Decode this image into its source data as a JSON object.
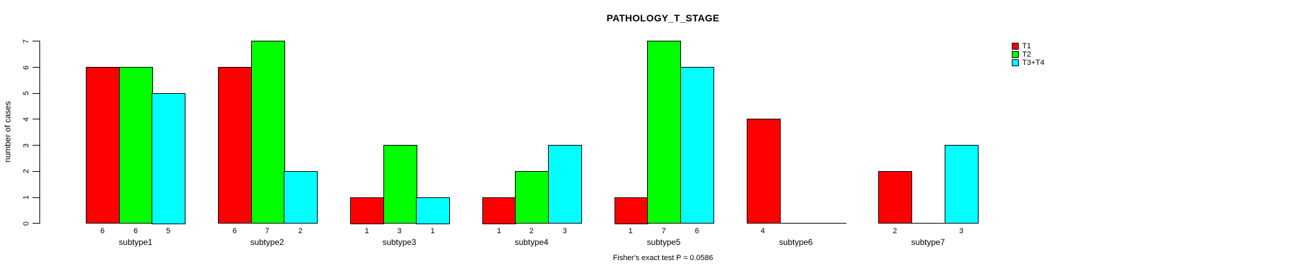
{
  "chart_data": {
    "type": "bar",
    "title": "PATHOLOGY_T_STAGE",
    "ylabel": "number of cases",
    "xlabel": "",
    "footnote": "Fisher's exact test P = 0.0586",
    "categories": [
      "subtype1",
      "subtype2",
      "subtype3",
      "subtype4",
      "subtype5",
      "subtype6",
      "subtype7"
    ],
    "series": [
      {
        "name": "T1",
        "color": "#ff0000",
        "values": [
          6,
          6,
          1,
          1,
          1,
          4,
          2
        ]
      },
      {
        "name": "T2",
        "color": "#00ff00",
        "values": [
          6,
          7,
          3,
          2,
          7,
          0,
          0
        ]
      },
      {
        "name": "T3+T4",
        "color": "#00ffff",
        "values": [
          5,
          2,
          1,
          3,
          6,
          0,
          3
        ]
      }
    ],
    "ylim": [
      0,
      7
    ],
    "yticks": [
      0,
      1,
      2,
      3,
      4,
      5,
      6,
      7
    ],
    "grid": false,
    "legend_position": "right",
    "bar_border_color": "#000000",
    "show_bar_value_labels": true,
    "zero_value_labels_hidden": true
  }
}
